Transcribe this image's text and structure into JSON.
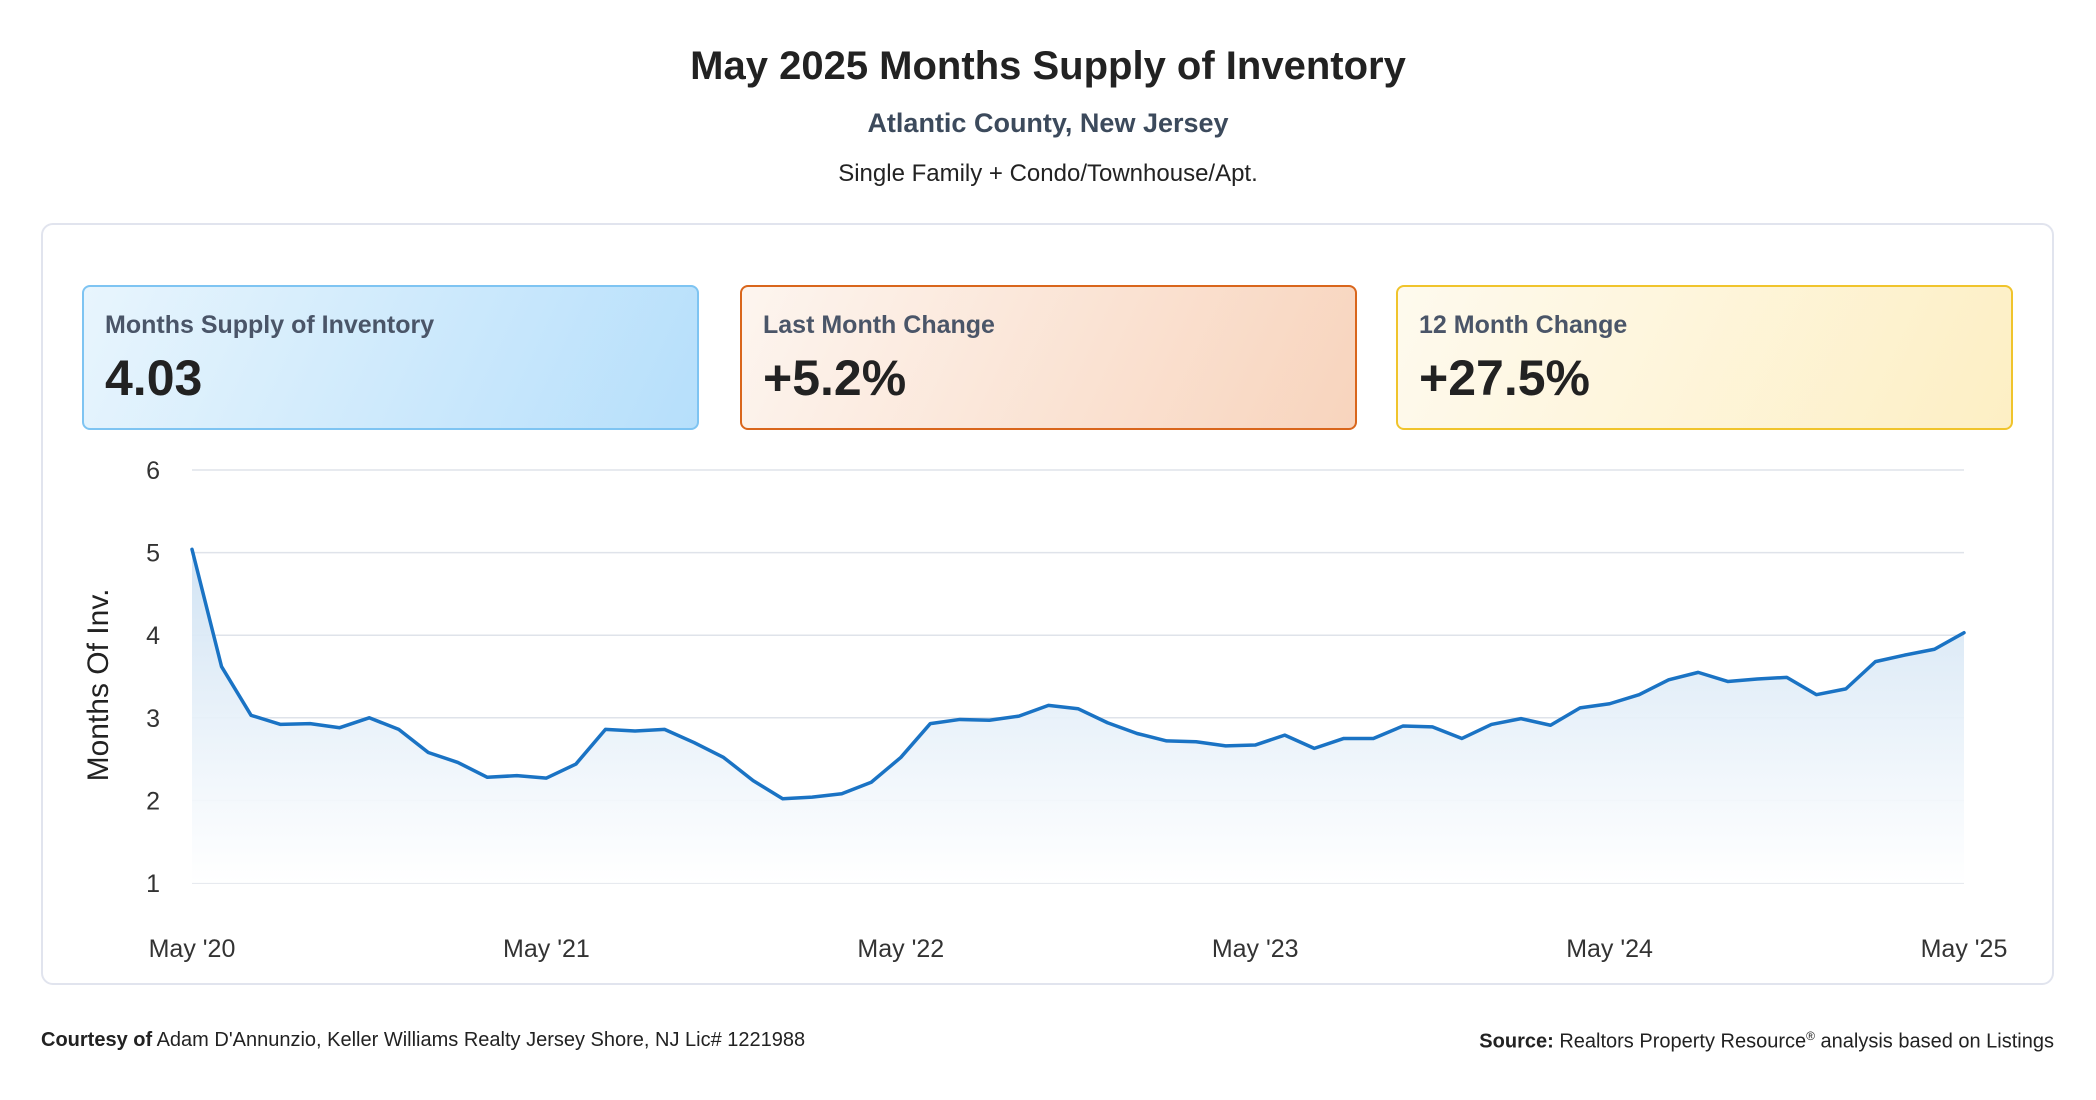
{
  "header": {
    "title": "May 2025 Months Supply of Inventory",
    "subtitle": "Atlantic County, New Jersey",
    "property_types": "Single Family + Condo/Townhouse/Apt."
  },
  "cards": [
    {
      "label": "Months Supply of Inventory",
      "value": "4.03",
      "border_color": "#7ec4f2"
    },
    {
      "label": "Last Month Change",
      "value": "+5.2%",
      "border_color": "#d9661c"
    },
    {
      "label": "12 Month Change",
      "value": "+27.5%",
      "border_color": "#f0c42c"
    }
  ],
  "chart_data": {
    "type": "area",
    "title": "",
    "ylabel": "Months Of Inv.",
    "xlabel": "",
    "ylim": [
      1,
      6
    ],
    "yticks": [
      1,
      2,
      3,
      4,
      5,
      6
    ],
    "x_tick_labels": [
      "May '20",
      "May '21",
      "May '22",
      "May '23",
      "May '24",
      "May '25"
    ],
    "x_start": "2020-05",
    "x_end": "2025-05",
    "grid": true,
    "line_color": "#1a73c4",
    "fill_color": "#dce9f6",
    "series": [
      {
        "values": [
          5.04,
          3.62,
          3.03,
          2.92,
          2.93,
          2.88,
          3.0,
          2.86,
          2.58,
          2.46,
          2.28,
          2.3,
          2.27,
          2.44,
          2.86,
          2.84,
          2.86,
          2.7,
          2.52,
          2.24,
          2.02,
          2.04,
          2.08,
          2.22,
          2.52,
          2.93,
          2.98,
          2.97,
          3.02,
          3.15,
          3.11,
          2.94,
          2.81,
          2.72,
          2.71,
          2.66,
          2.67,
          2.79,
          2.63,
          2.75,
          2.75,
          2.9,
          2.89,
          2.75,
          2.92,
          2.99,
          2.91,
          3.12,
          3.17,
          3.28,
          3.46,
          3.55,
          3.44,
          3.47,
          3.49,
          3.28,
          3.35,
          3.68,
          3.76,
          3.83,
          4.03
        ]
      }
    ]
  },
  "footer": {
    "courtesy_label": "Courtesy of",
    "courtesy_text": "Adam D'Annunzio, Keller Williams Realty Jersey Shore, NJ Lic# 1221988",
    "source_label": "Source:",
    "source_text_a": "Realtors Property Resource",
    "source_sup": "®",
    "source_text_b": "analysis based on Listings"
  }
}
